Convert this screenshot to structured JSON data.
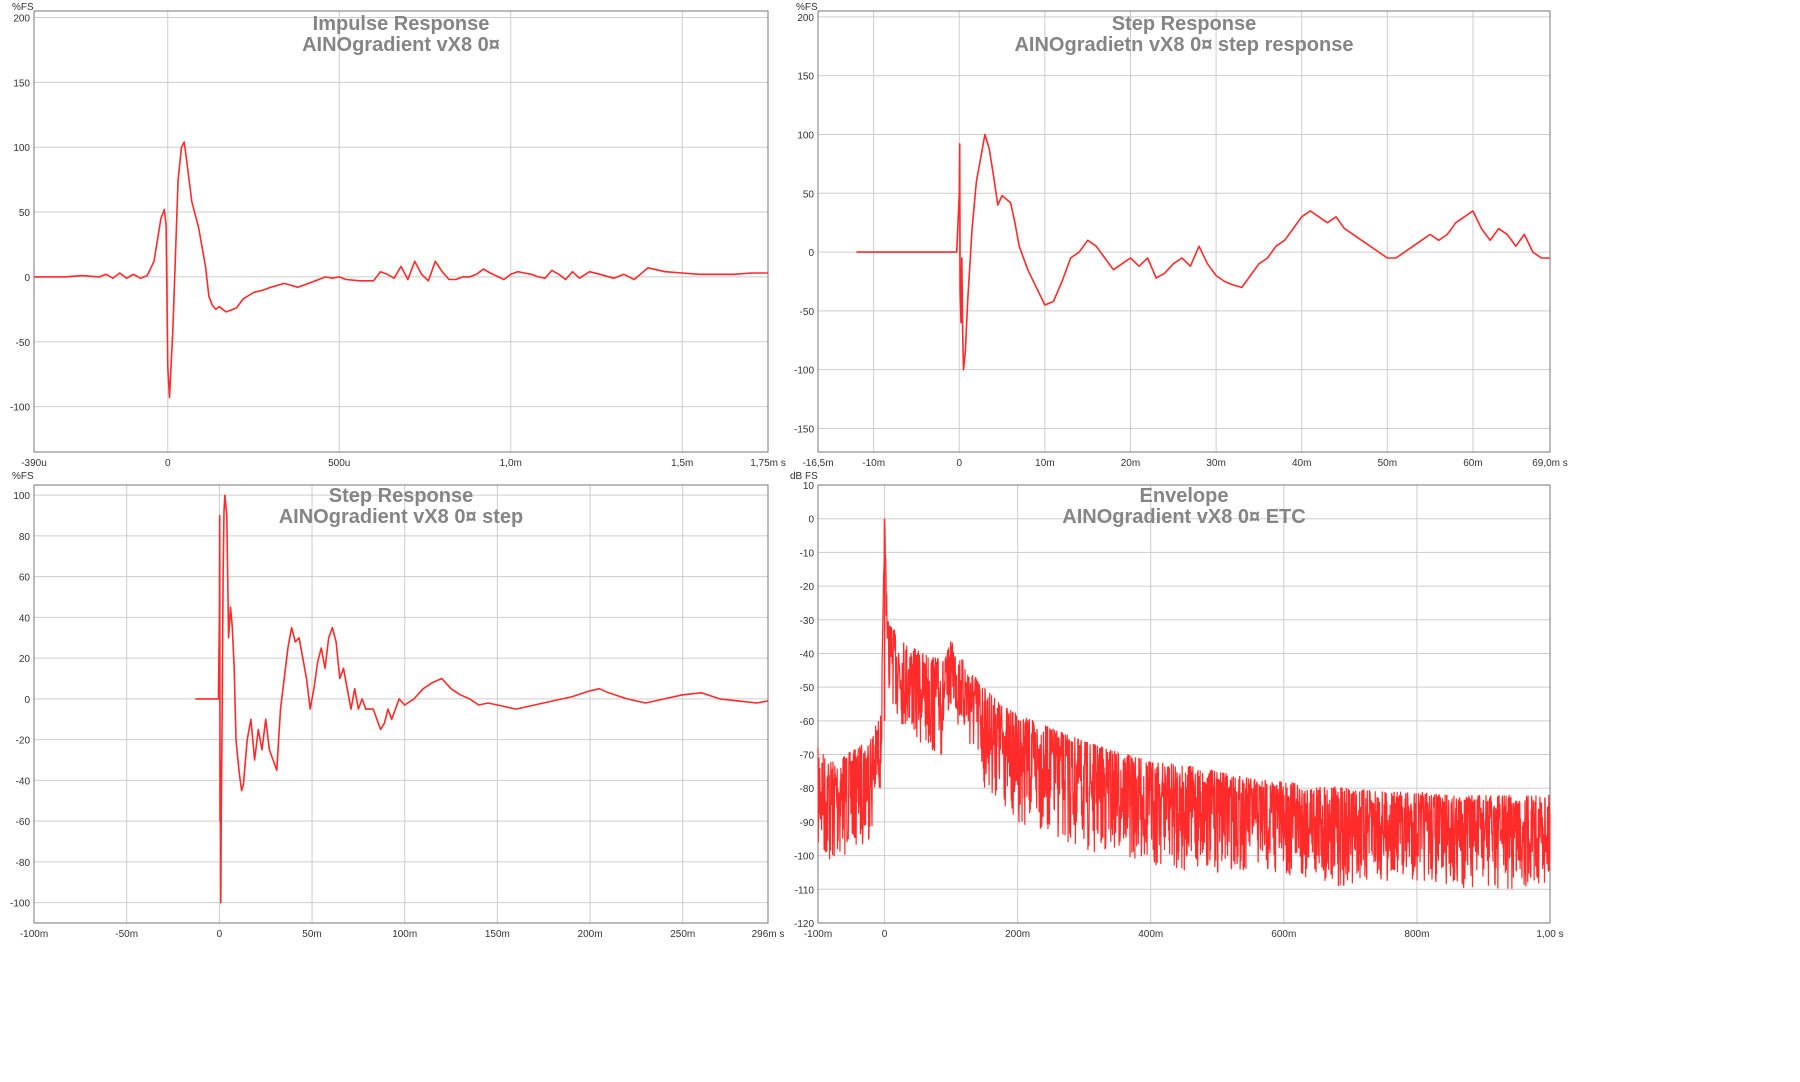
{
  "colors": {
    "line": "#ff2a2a",
    "grid": "#cdcdcd",
    "axis": "#777777",
    "background": "#ffffff"
  },
  "chart_data": [
    {
      "type": "line",
      "title": "Impulse Response",
      "subtitle": "AINOgradient vX8 0¤",
      "ylabel": "%FS",
      "ylim": [
        -135,
        205
      ],
      "xlim": [
        -390,
        1750
      ],
      "x_ticks": [
        {
          "v": -390,
          "label": "-390u"
        },
        {
          "v": 0,
          "label": "0"
        },
        {
          "v": 500,
          "label": "500u"
        },
        {
          "v": 1000,
          "label": "1,0m"
        },
        {
          "v": 1500,
          "label": "1,5m"
        },
        {
          "v": 1750,
          "label": "1,75m s"
        }
      ],
      "y_ticks": [
        200,
        150,
        100,
        50,
        0,
        -50,
        -100
      ],
      "x": [
        -390,
        -300,
        -250,
        -200,
        -180,
        -160,
        -140,
        -120,
        -100,
        -80,
        -60,
        -40,
        -20,
        -10,
        -5,
        0,
        5,
        15,
        30,
        40,
        48,
        55,
        70,
        90,
        110,
        120,
        130,
        140,
        150,
        170,
        180,
        200,
        220,
        250,
        280,
        300,
        340,
        380,
        420,
        440,
        460,
        480,
        500,
        520,
        560,
        600,
        620,
        640,
        660,
        680,
        700,
        720,
        740,
        760,
        780,
        800,
        820,
        840,
        860,
        880,
        900,
        920,
        940,
        980,
        1000,
        1020,
        1040,
        1060,
        1080,
        1100,
        1120,
        1140,
        1160,
        1180,
        1200,
        1230,
        1260,
        1300,
        1330,
        1360,
        1400,
        1450,
        1500,
        1550,
        1600,
        1650,
        1700,
        1750
      ],
      "y": [
        0,
        0,
        1,
        0,
        2,
        -1,
        3,
        -1,
        2,
        -1,
        1,
        12,
        45,
        52,
        40,
        -70,
        -93,
        -40,
        75,
        100,
        104,
        90,
        58,
        38,
        8,
        -15,
        -22,
        -25,
        -23,
        -27,
        -26,
        -24,
        -17,
        -12,
        -10,
        -8,
        -5,
        -8,
        -4,
        -2,
        0,
        -1,
        0,
        -2,
        -3,
        -3,
        4,
        2,
        -1,
        8,
        -2,
        12,
        2,
        -3,
        12,
        4,
        -2,
        -2,
        0,
        0,
        2,
        6,
        3,
        -2,
        2,
        4,
        3,
        2,
        0,
        -1,
        5,
        2,
        -2,
        4,
        -1,
        4,
        2,
        -1,
        2,
        -2,
        7,
        4,
        3,
        2,
        2,
        2,
        3,
        3
      ],
      "box": {
        "x": 34,
        "y": 11,
        "w": 734,
        "h": 441
      }
    },
    {
      "type": "line",
      "title": "Step Response",
      "subtitle": "AINOgradietn vX8 0¤ step response",
      "ylabel": "%FS",
      "ylim": [
        -170,
        205
      ],
      "xlim": [
        -16.5,
        69
      ],
      "x_ticks": [
        {
          "v": -16.5,
          "label": "-16,5m"
        },
        {
          "v": -10,
          "label": "-10m"
        },
        {
          "v": 0,
          "label": "0"
        },
        {
          "v": 10,
          "label": "10m"
        },
        {
          "v": 20,
          "label": "20m"
        },
        {
          "v": 30,
          "label": "30m"
        },
        {
          "v": 40,
          "label": "40m"
        },
        {
          "v": 50,
          "label": "50m"
        },
        {
          "v": 60,
          "label": "60m"
        },
        {
          "v": 69,
          "label": "69,0m s"
        }
      ],
      "y_ticks": [
        200,
        150,
        100,
        50,
        0,
        -50,
        -100,
        -150
      ],
      "x": [
        -12,
        -2,
        -0.3,
        0,
        0.05,
        0.1,
        0.2,
        0.3,
        0.4,
        0.5,
        0.7,
        1,
        1.5,
        2,
        2.5,
        3,
        3.5,
        4,
        4.5,
        5,
        5.5,
        6,
        6.5,
        7,
        8,
        9,
        10,
        11,
        12,
        13,
        14,
        15,
        16,
        17,
        18,
        19,
        20,
        21,
        22,
        23,
        24,
        25,
        26,
        27,
        28,
        29,
        30,
        31,
        32,
        33,
        34,
        35,
        36,
        37,
        38,
        39,
        40,
        41,
        42,
        43,
        44,
        45,
        46,
        47,
        48,
        49,
        50,
        51,
        52,
        53,
        54,
        55,
        56,
        57,
        58,
        59,
        60,
        61,
        62,
        63,
        64,
        65,
        66,
        67,
        68,
        69
      ],
      "y": [
        0,
        0,
        0,
        50,
        92,
        -30,
        -60,
        -5,
        -70,
        -100,
        -85,
        -40,
        20,
        60,
        80,
        100,
        88,
        65,
        40,
        48,
        45,
        42,
        25,
        5,
        -15,
        -30,
        -45,
        -42,
        -25,
        -5,
        0,
        10,
        5,
        -5,
        -15,
        -10,
        -5,
        -12,
        -5,
        -22,
        -18,
        -10,
        -5,
        -12,
        5,
        -10,
        -20,
        -25,
        -28,
        -30,
        -20,
        -10,
        -5,
        5,
        10,
        20,
        30,
        35,
        30,
        25,
        30,
        20,
        15,
        10,
        5,
        0,
        -5,
        -5,
        0,
        5,
        10,
        15,
        10,
        15,
        25,
        30,
        35,
        20,
        10,
        20,
        15,
        5,
        15,
        0,
        -5,
        -5
      ],
      "box": {
        "x": 818,
        "y": 11,
        "w": 732,
        "h": 441
      }
    },
    {
      "type": "line",
      "title": "Step Response",
      "subtitle": "AINOgradient vX8 0¤ step",
      "ylabel": "%FS",
      "ylim": [
        -110,
        105
      ],
      "xlim": [
        -100,
        296
      ],
      "x_ticks": [
        {
          "v": -100,
          "label": "-100m"
        },
        {
          "v": -50,
          "label": "-50m"
        },
        {
          "v": 0,
          "label": "0"
        },
        {
          "v": 50,
          "label": "50m"
        },
        {
          "v": 100,
          "label": "100m"
        },
        {
          "v": 150,
          "label": "150m"
        },
        {
          "v": 200,
          "label": "200m"
        },
        {
          "v": 250,
          "label": "250m"
        },
        {
          "v": 296,
          "label": "296m s"
        }
      ],
      "y_ticks": [
        100,
        80,
        60,
        40,
        20,
        0,
        -20,
        -40,
        -60,
        -80,
        -100
      ],
      "x": [
        -13,
        -2,
        -0.5,
        0,
        0.2,
        0.4,
        0.6,
        0.8,
        1,
        1.5,
        2,
        2.5,
        3,
        4,
        5,
        6,
        7,
        8,
        9,
        10,
        11,
        12,
        13,
        15,
        17,
        19,
        21,
        23,
        25,
        27,
        29,
        31,
        33,
        35,
        37,
        39,
        41,
        43,
        45,
        47,
        49,
        51,
        53,
        55,
        57,
        59,
        61,
        63,
        65,
        67,
        69,
        71,
        73,
        75,
        77,
        79,
        81,
        83,
        85,
        87,
        89,
        91,
        93,
        95,
        97,
        100,
        105,
        110,
        115,
        120,
        125,
        130,
        135,
        140,
        145,
        150,
        160,
        170,
        180,
        190,
        200,
        205,
        210,
        220,
        230,
        240,
        250,
        260,
        270,
        280,
        290,
        296
      ],
      "y": [
        0,
        0,
        0,
        40,
        90,
        -60,
        -30,
        -100,
        -60,
        -10,
        60,
        92,
        100,
        90,
        30,
        45,
        35,
        15,
        -20,
        -30,
        -38,
        -45,
        -42,
        -20,
        -10,
        -30,
        -15,
        -25,
        -10,
        -25,
        -30,
        -35,
        -5,
        10,
        25,
        35,
        28,
        30,
        20,
        10,
        -5,
        5,
        18,
        25,
        15,
        30,
        35,
        28,
        10,
        15,
        5,
        -5,
        5,
        -5,
        0,
        -5,
        -5,
        -5,
        -10,
        -15,
        -12,
        -5,
        -10,
        -5,
        0,
        -3,
        0,
        5,
        8,
        10,
        5,
        2,
        0,
        -3,
        -2,
        -3,
        -5,
        -3,
        -1,
        1,
        4,
        5,
        3,
        0,
        -2,
        0,
        2,
        3,
        0,
        -1,
        -2,
        -1
      ],
      "box": {
        "x": 34,
        "y": 485,
        "w": 734,
        "h": 438
      }
    },
    {
      "type": "line",
      "title": "Envelope",
      "subtitle": "AINOgradient vX8 0¤ ETC",
      "ylabel": "dB FS",
      "ylim": [
        -120,
        10
      ],
      "xlim": [
        -100,
        1000
      ],
      "x_ticks": [
        {
          "v": -100,
          "label": "-100m"
        },
        {
          "v": 0,
          "label": "0"
        },
        {
          "v": 200,
          "label": "200m"
        },
        {
          "v": 400,
          "label": "400m"
        },
        {
          "v": 600,
          "label": "600m"
        },
        {
          "v": 800,
          "label": "800m"
        },
        {
          "v": 1000,
          "label": "1,00 s"
        }
      ],
      "y_ticks": [
        10,
        0,
        -10,
        -20,
        -30,
        -40,
        -50,
        -60,
        -70,
        -80,
        -90,
        -100,
        -110,
        -120
      ],
      "x": [
        -100,
        -80,
        -60,
        -40,
        -20,
        -5,
        0,
        5,
        20,
        40,
        60,
        90,
        100,
        110,
        130,
        150,
        175,
        200,
        250,
        300,
        350,
        400,
        450,
        500,
        550,
        600,
        650,
        700,
        750,
        800,
        850,
        900,
        950,
        1000
      ],
      "y_upper": [
        -68,
        -72,
        -70,
        -68,
        -64,
        -58,
        0,
        -30,
        -35,
        -38,
        -40,
        -42,
        -36,
        -40,
        -45,
        -50,
        -55,
        -58,
        -62,
        -66,
        -69,
        -72,
        -73,
        -75,
        -77,
        -78,
        -79,
        -80,
        -81,
        -81,
        -82,
        -82,
        -82,
        -82
      ],
      "y_lower": [
        -100,
        -105,
        -100,
        -98,
        -95,
        -80,
        -5,
        -50,
        -60,
        -65,
        -70,
        -72,
        -55,
        -62,
        -70,
        -80,
        -85,
        -90,
        -95,
        -100,
        -100,
        -103,
        -105,
        -105,
        -105,
        -106,
        -108,
        -110,
        -108,
        -108,
        -110,
        -110,
        -110,
        -108
      ],
      "box": {
        "x": 818,
        "y": 485,
        "w": 732,
        "h": 438
      }
    }
  ]
}
